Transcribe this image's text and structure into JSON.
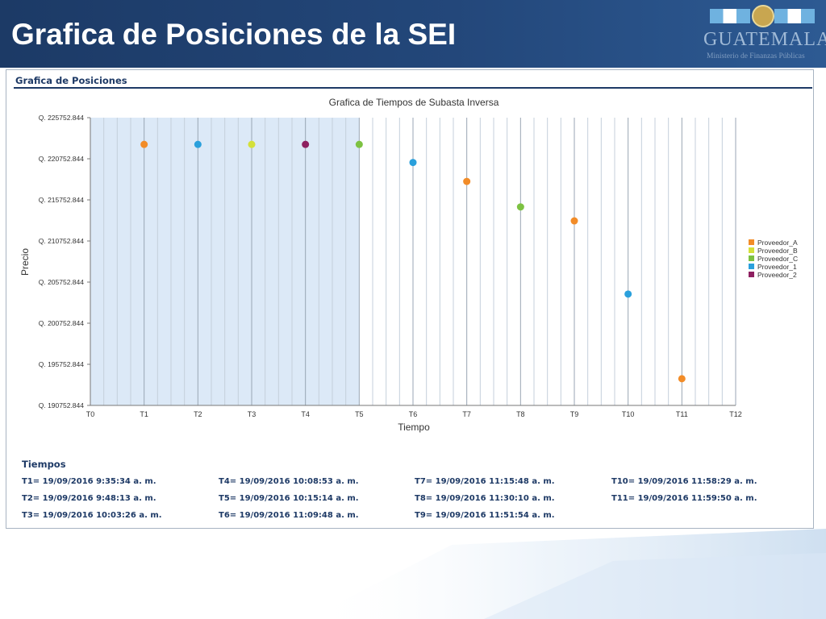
{
  "slide": {
    "title": "Grafica de Posiciones de la SEI",
    "logo": {
      "word": "GUATEMALA",
      "subtitle": "Ministerio de Finanzas Públicas"
    }
  },
  "panel": {
    "title": "Grafica de Posiciones"
  },
  "colors": {
    "Proveedor_A": "#f28c28",
    "Proveedor_B": "#d4e03a",
    "Proveedor_C": "#7dc242",
    "Proveedor_1": "#2aa0dc",
    "Proveedor_2": "#8e2060",
    "shade": "#dce9f7"
  },
  "chart_data": {
    "type": "scatter",
    "title": "Grafica de Tiempos de Subasta Inversa",
    "xlabel": "Tiempo",
    "ylabel": "Precio",
    "categories": [
      "T0",
      "T1",
      "T2",
      "T3",
      "T4",
      "T5",
      "T6",
      "T7",
      "T8",
      "T9",
      "T10",
      "T11",
      "T12"
    ],
    "y_tick_labels": [
      "Q. 190752.844",
      "Q. 195752.844",
      "Q. 200752.844",
      "Q. 205752.844",
      "Q. 210752.844",
      "Q. 215752.844",
      "Q. 220752.844",
      "Q. 225752.844"
    ],
    "ylim": [
      190752.844,
      225752.844
    ],
    "shaded_x_range": [
      "T0",
      "T5"
    ],
    "legend_position": "right",
    "series": [
      {
        "name": "Proveedor_A",
        "points": [
          {
            "x": "T1",
            "y": 222500
          },
          {
            "x": "T7",
            "y": 218000
          },
          {
            "x": "T9",
            "y": 213200
          },
          {
            "x": "T11",
            "y": 194000
          }
        ]
      },
      {
        "name": "Proveedor_B",
        "points": [
          {
            "x": "T3",
            "y": 222500
          }
        ]
      },
      {
        "name": "Proveedor_C",
        "points": [
          {
            "x": "T5",
            "y": 222500
          },
          {
            "x": "T8",
            "y": 214900
          }
        ]
      },
      {
        "name": "Proveedor_1",
        "points": [
          {
            "x": "T2",
            "y": 222500
          },
          {
            "x": "T6",
            "y": 220300
          },
          {
            "x": "T10",
            "y": 204300
          }
        ]
      },
      {
        "name": "Proveedor_2",
        "points": [
          {
            "x": "T4",
            "y": 222500
          }
        ]
      }
    ]
  },
  "times": {
    "heading": "Tiempos",
    "entries": [
      "T1= 19/09/2016 9:35:34 a. m.",
      "T2= 19/09/2016 9:48:13 a. m.",
      "T3= 19/09/2016 10:03:26 a. m.",
      "T4= 19/09/2016 10:08:53 a. m.",
      "T5= 19/09/2016 10:15:14 a. m.",
      "T6= 19/09/2016 11:09:48 a. m.",
      "T7= 19/09/2016 11:15:48 a. m.",
      "T8= 19/09/2016 11:30:10 a. m.",
      "T9= 19/09/2016 11:51:54 a. m.",
      "T10= 19/09/2016 11:58:29 a. m.",
      "T11= 19/09/2016 11:59:50 a. m."
    ]
  }
}
